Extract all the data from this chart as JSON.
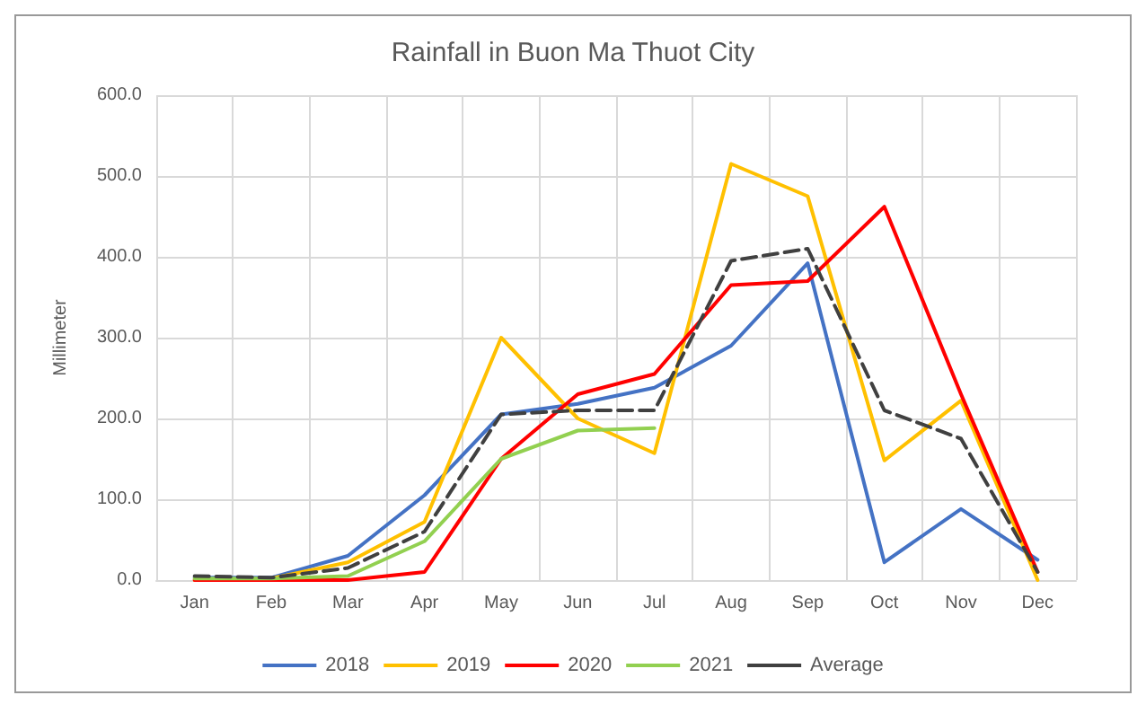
{
  "chart_data": {
    "type": "line",
    "title": "Rainfall in Buon Ma Thuot City",
    "ylabel": "Millimeter",
    "categories": [
      "Jan",
      "Feb",
      "Mar",
      "Apr",
      "May",
      "Jun",
      "Jul",
      "Aug",
      "Sep",
      "Oct",
      "Nov",
      "Dec"
    ],
    "series": [
      {
        "name": "2018",
        "color": "#4472c4",
        "values": [
          3,
          3,
          30,
          105,
          205,
          218,
          238,
          290,
          392,
          22,
          88,
          25
        ]
      },
      {
        "name": "2019",
        "color": "#ffc000",
        "values": [
          0,
          2,
          22,
          72,
          300,
          200,
          157,
          515,
          475,
          148,
          222,
          0
        ]
      },
      {
        "name": "2020",
        "color": "#ff0000",
        "values": [
          0,
          0,
          0,
          10,
          150,
          230,
          255,
          365,
          370,
          462,
          230,
          10
        ]
      },
      {
        "name": "2021",
        "color": "#92d050",
        "values": [
          2,
          2,
          5,
          48,
          150,
          185,
          188,
          null,
          null,
          null,
          null,
          null
        ]
      },
      {
        "name": "Average",
        "color": "#404040",
        "line_style": "dashed",
        "values": [
          5,
          3,
          15,
          60,
          205,
          210,
          210,
          395,
          410,
          210,
          175,
          10
        ]
      }
    ],
    "ylim": [
      0,
      600
    ],
    "yticks": [
      {
        "value": 0,
        "label": "0.0"
      },
      {
        "value": 100,
        "label": "100.0"
      },
      {
        "value": 200,
        "label": "200.0"
      },
      {
        "value": 300,
        "label": "300.0"
      },
      {
        "value": 400,
        "label": "400.0"
      },
      {
        "value": 500,
        "label": "500.0"
      },
      {
        "value": 600,
        "label": "600.0"
      }
    ],
    "grid": true,
    "legend": "bottom",
    "marker": "none",
    "line_style": "solid"
  }
}
